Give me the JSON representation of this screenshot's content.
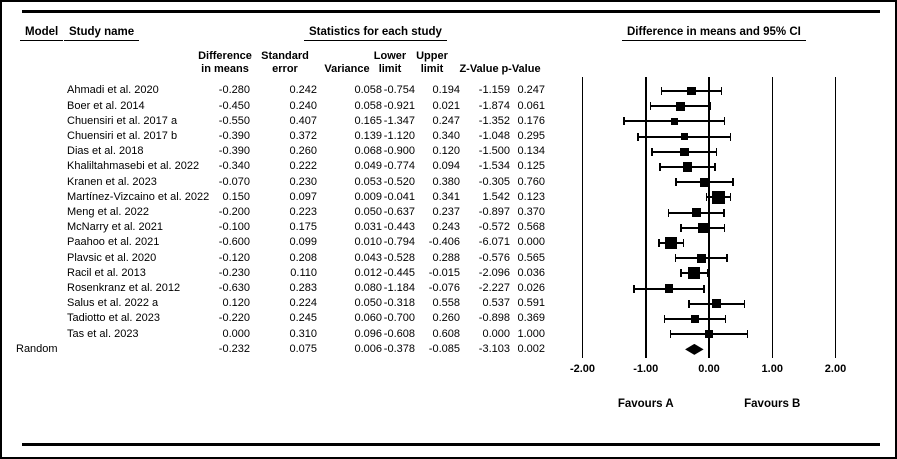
{
  "header": {
    "model_label": "Model",
    "study_name_label": "Study name",
    "stats_title": "Statistics for each study",
    "ci_title": "Difference in means and 95% CI"
  },
  "columns": {
    "diff_line1": "Difference",
    "diff_line2": "in means",
    "se_line1": "Standard",
    "se_line2": "error",
    "variance": "Variance",
    "lower_line1": "Lower",
    "lower_line2": "limit",
    "upper_line1": "Upper",
    "upper_line2": "limit",
    "z": "Z-Value",
    "p": "p-Value"
  },
  "colors": {
    "ink": "#000000",
    "background": "#ffffff"
  },
  "chart_data": {
    "type": "forest",
    "title": "Difference in means and 95% CI",
    "xlim": [
      -2.0,
      2.0
    ],
    "axis_ticks": [
      "-2.00",
      "-1.00",
      "0.00",
      "1.00",
      "2.00"
    ],
    "footer_left": "Favours A",
    "footer_right": "Favours B",
    "studies": [
      {
        "name": "Ahmadi et al. 2020",
        "diff": "-0.280",
        "se": "0.242",
        "variance": "0.058",
        "lower": "-0.754",
        "upper": "0.194",
        "z": "-1.159",
        "p": "0.247"
      },
      {
        "name": "Boer et al. 2014",
        "diff": "-0.450",
        "se": "0.240",
        "variance": "0.058",
        "lower": "-0.921",
        "upper": "0.021",
        "z": "-1.874",
        "p": "0.061"
      },
      {
        "name": "Chuensiri et al. 2017 a",
        "diff": "-0.550",
        "se": "0.407",
        "variance": "0.165",
        "lower": "-1.347",
        "upper": "0.247",
        "z": "-1.352",
        "p": "0.176"
      },
      {
        "name": "Chuensiri et al. 2017 b",
        "diff": "-0.390",
        "se": "0.372",
        "variance": "0.139",
        "lower": "-1.120",
        "upper": "0.340",
        "z": "-1.048",
        "p": "0.295"
      },
      {
        "name": "Dias et al. 2018",
        "diff": "-0.390",
        "se": "0.260",
        "variance": "0.068",
        "lower": "-0.900",
        "upper": "0.120",
        "z": "-1.500",
        "p": "0.134"
      },
      {
        "name": "Khaliltahmasebi et al. 2022",
        "diff": "-0.340",
        "se": "0.222",
        "variance": "0.049",
        "lower": "-0.774",
        "upper": "0.094",
        "z": "-1.534",
        "p": "0.125"
      },
      {
        "name": "Kranen et al. 2023",
        "diff": "-0.070",
        "se": "0.230",
        "variance": "0.053",
        "lower": "-0.520",
        "upper": "0.380",
        "z": "-0.305",
        "p": "0.760"
      },
      {
        "name": "Martínez-Vizcaino et al. 2022",
        "diff": "0.150",
        "se": "0.097",
        "variance": "0.009",
        "lower": "-0.041",
        "upper": "0.341",
        "z": "1.542",
        "p": "0.123"
      },
      {
        "name": "Meng et al. 2022",
        "diff": "-0.200",
        "se": "0.223",
        "variance": "0.050",
        "lower": "-0.637",
        "upper": "0.237",
        "z": "-0.897",
        "p": "0.370"
      },
      {
        "name": "McNarry et al. 2021",
        "diff": "-0.100",
        "se": "0.175",
        "variance": "0.031",
        "lower": "-0.443",
        "upper": "0.243",
        "z": "-0.572",
        "p": "0.568"
      },
      {
        "name": "Paahoo et al. 2021",
        "diff": "-0.600",
        "se": "0.099",
        "variance": "0.010",
        "lower": "-0.794",
        "upper": "-0.406",
        "z": "-6.071",
        "p": "0.000"
      },
      {
        "name": "Plavsic et al. 2020",
        "diff": "-0.120",
        "se": "0.208",
        "variance": "0.043",
        "lower": "-0.528",
        "upper": "0.288",
        "z": "-0.576",
        "p": "0.565"
      },
      {
        "name": "Racil et al. 2013",
        "diff": "-0.230",
        "se": "0.110",
        "variance": "0.012",
        "lower": "-0.445",
        "upper": "-0.015",
        "z": "-2.096",
        "p": "0.036"
      },
      {
        "name": "Rosenkranz et al. 2012",
        "diff": "-0.630",
        "se": "0.283",
        "variance": "0.080",
        "lower": "-1.184",
        "upper": "-0.076",
        "z": "-2.227",
        "p": "0.026"
      },
      {
        "name": "Salus et al. 2022 a",
        "diff": "0.120",
        "se": "0.224",
        "variance": "0.050",
        "lower": "-0.318",
        "upper": "0.558",
        "z": "0.537",
        "p": "0.591"
      },
      {
        "name": "Tadiotto et al. 2023",
        "diff": "-0.220",
        "se": "0.245",
        "variance": "0.060",
        "lower": "-0.700",
        "upper": "0.260",
        "z": "-0.898",
        "p": "0.369"
      },
      {
        "name": "Tas et al. 2023",
        "diff": "0.000",
        "se": "0.310",
        "variance": "0.096",
        "lower": "-0.608",
        "upper": "0.608",
        "z": "0.000",
        "p": "1.000"
      }
    ],
    "summary": {
      "model": "Random",
      "diff": "-0.232",
      "se": "0.075",
      "variance": "0.006",
      "lower": "-0.378",
      "upper": "-0.085",
      "z": "-3.103",
      "p": "0.002"
    }
  }
}
